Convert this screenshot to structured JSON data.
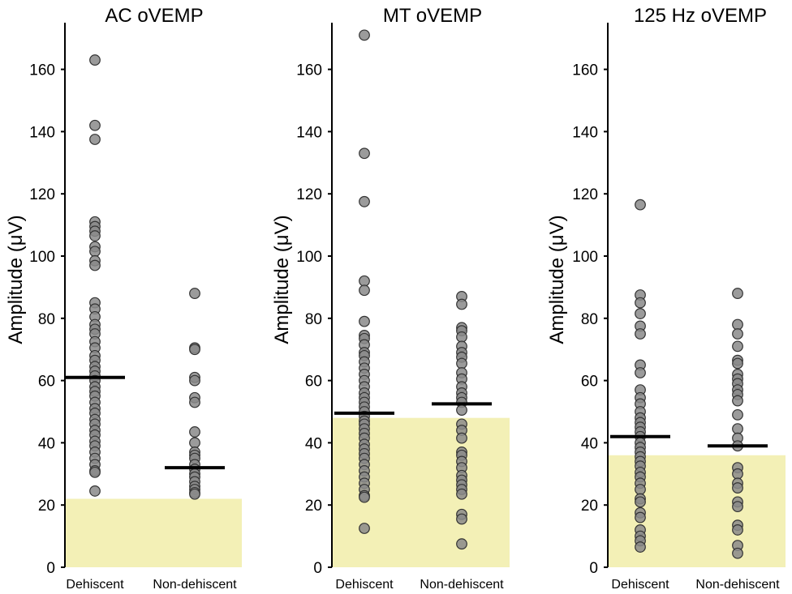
{
  "chart_data": [
    {
      "type": "scatter",
      "title": "AC oVEMP",
      "ylabel": "Amplitude (μV)",
      "ylim": [
        0,
        175
      ],
      "yticks": [
        0,
        20,
        40,
        60,
        80,
        100,
        120,
        140,
        160
      ],
      "categories": [
        "Dehiscent",
        "Non-dehiscent"
      ],
      "normal_range": [
        0,
        22
      ],
      "normal_range_color": "#f3f0b6",
      "series": [
        {
          "name": "Dehiscent",
          "mean": 61,
          "values": [
            163,
            142,
            137.5,
            111,
            109.5,
            108,
            106.5,
            103,
            101.5,
            98.5,
            97,
            85,
            83,
            80.5,
            78,
            76.5,
            75,
            72.5,
            70.5,
            68,
            66.5,
            64.5,
            63,
            61.5,
            60,
            58,
            56.5,
            55,
            53,
            51,
            49.5,
            47.5,
            46,
            44,
            42.5,
            40.5,
            39,
            37,
            35,
            33,
            31,
            30.5,
            24.5
          ]
        },
        {
          "name": "Non-dehiscent",
          "mean": 32,
          "values": [
            88,
            70.5,
            70,
            61,
            60,
            54.5,
            53,
            43.5,
            40,
            37,
            36,
            35,
            33,
            31.5,
            30,
            29,
            27.5,
            26,
            25,
            24,
            23.5
          ]
        }
      ]
    },
    {
      "type": "scatter",
      "title": "MT oVEMP",
      "ylabel": "Amplitude (μV)",
      "ylim": [
        0,
        175
      ],
      "yticks": [
        0,
        20,
        40,
        60,
        80,
        100,
        120,
        140,
        160
      ],
      "categories": [
        "Dehiscent",
        "Non-dehiscent"
      ],
      "normal_range": [
        0,
        48
      ],
      "normal_range_color": "#f3f0b6",
      "series": [
        {
          "name": "Dehiscent",
          "mean": 49.5,
          "values": [
            171,
            133,
            117.5,
            92,
            89,
            79,
            74.5,
            73.5,
            71.5,
            69,
            68,
            66,
            64,
            62,
            60,
            58,
            56,
            54.5,
            53,
            51.5,
            50,
            48.5,
            47,
            46,
            44.5,
            43,
            41.5,
            39.5,
            38,
            36.5,
            35,
            33,
            31,
            29,
            27,
            25,
            23,
            22.5,
            12.5
          ]
        },
        {
          "name": "Non-dehiscent",
          "mean": 52.5,
          "values": [
            87,
            84.5,
            77,
            76,
            74,
            71,
            69,
            67.5,
            65.5,
            62.5,
            60.5,
            58,
            56,
            54.5,
            53,
            50.5,
            46,
            44,
            41.5,
            37,
            36,
            34,
            32,
            29.5,
            28,
            26.5,
            25,
            23.5,
            17,
            15.5,
            7.5
          ]
        }
      ]
    },
    {
      "type": "scatter",
      "title": "125 Hz oVEMP",
      "ylabel": "Amplitude (μV)",
      "ylim": [
        0,
        175
      ],
      "yticks": [
        0,
        20,
        40,
        60,
        80,
        100,
        120,
        140,
        160
      ],
      "categories": [
        "Dehiscent",
        "Non-dehiscent"
      ],
      "normal_range": [
        0,
        36
      ],
      "normal_range_color": "#f3f0b6",
      "series": [
        {
          "name": "Dehiscent",
          "mean": 42,
          "values": [
            116.5,
            87.5,
            85,
            81.5,
            77.5,
            75,
            65,
            62.5,
            57,
            54.5,
            52.5,
            50,
            48,
            46.5,
            45,
            43.5,
            42,
            40,
            38.5,
            37,
            35.5,
            34,
            32.5,
            30.5,
            29,
            27,
            25,
            22,
            21,
            17.5,
            16,
            12,
            10,
            8.5,
            6.5
          ]
        },
        {
          "name": "Non-dehiscent",
          "mean": 39,
          "values": [
            88,
            78,
            75,
            71,
            66.5,
            65.5,
            62,
            60.5,
            59,
            57,
            55.5,
            53.5,
            49,
            44.5,
            41.5,
            39,
            32,
            30,
            27,
            25.5,
            21,
            19.5,
            13.5,
            12,
            7,
            4.5
          ]
        }
      ]
    }
  ],
  "colors": {
    "point_fill": "#8a8a8a",
    "point_stroke": "#333333",
    "mean_line": "#000000",
    "axis": "#000000",
    "normal_range": "#f3f0b6"
  }
}
